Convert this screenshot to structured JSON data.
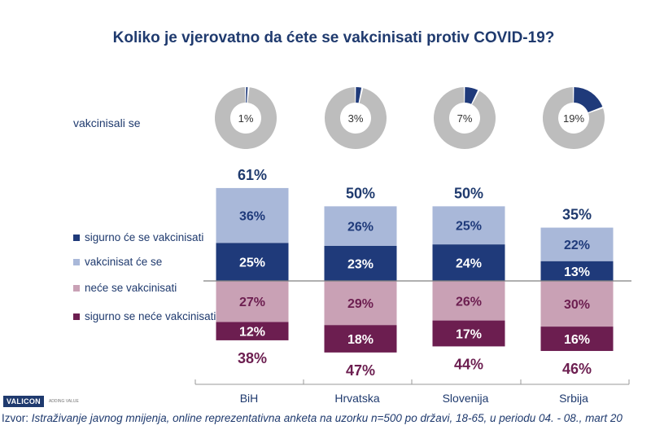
{
  "chart_data": {
    "type": "bar",
    "title": "Koliko je vjerovatno da ćete se vakcinisati protiv COVID-19?",
    "categories": [
      "BiH",
      "Hrvatska",
      "Slovenija",
      "Srbija"
    ],
    "series": [
      {
        "name": "sigurno će se vakcinisati",
        "values": [
          25,
          23,
          24,
          13
        ],
        "color": "#1f3a7a",
        "direction": "up"
      },
      {
        "name": "vakcinisat će se",
        "values": [
          36,
          26,
          25,
          22
        ],
        "color": "#a9b8d9",
        "direction": "up"
      },
      {
        "name": "neće se vakcinisati",
        "values": [
          27,
          29,
          26,
          30
        ],
        "color": "#c9a1b5",
        "direction": "down"
      },
      {
        "name": "sigurno se neće vakcinisati",
        "values": [
          12,
          18,
          17,
          16
        ],
        "color": "#6c1e50",
        "direction": "down"
      }
    ],
    "positive_totals": [
      "61%",
      "50%",
      "50%",
      "35%"
    ],
    "negative_totals": [
      "38%",
      "47%",
      "44%",
      "46%"
    ],
    "donut": {
      "label": "vakcinisali se",
      "values": [
        1,
        3,
        7,
        19
      ],
      "labels": [
        "1%",
        "3%",
        "7%",
        "19%"
      ],
      "color": "#1f3a7a",
      "rest_color": "#bdbdbd"
    },
    "legend_position": "left",
    "grid": false
  },
  "footer": {
    "logo": "VALICON",
    "logo_tagline": "ADDING VALUE",
    "source_prefix": "Izvor: ",
    "source_text": "Istraživanje javnog mnijenja, online reprezentativna anketa na uzorku n=500 po državi, 18-65, u periodu 04. - 08., mart 20"
  }
}
